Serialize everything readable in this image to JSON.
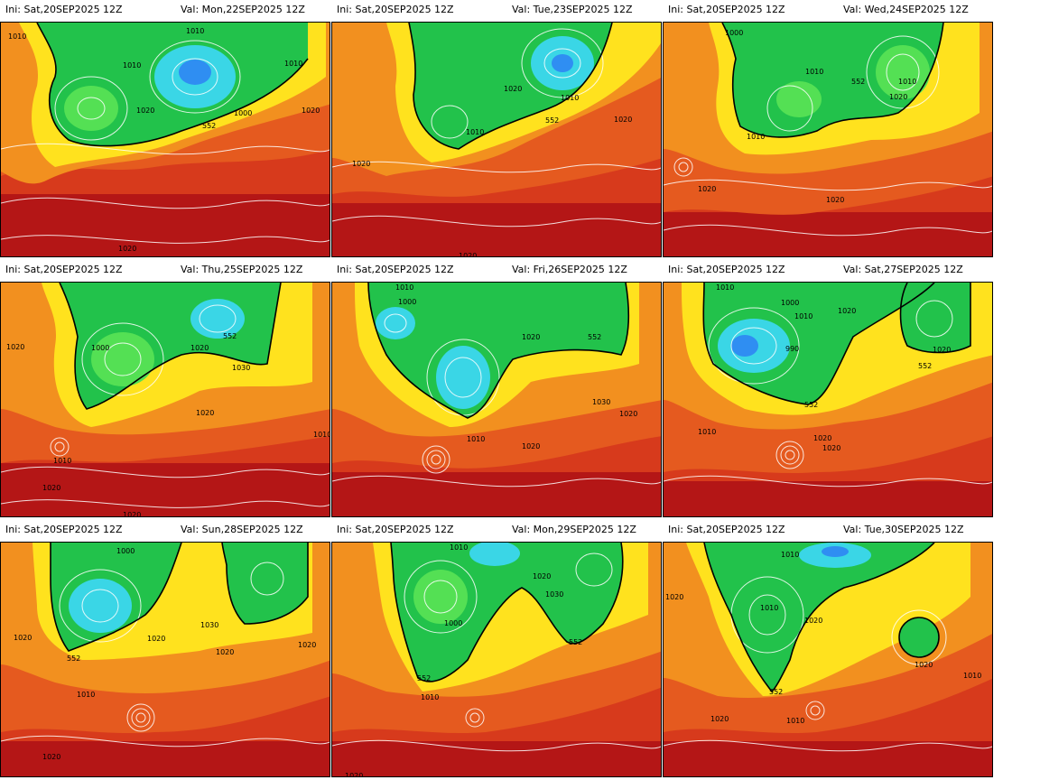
{
  "title": "",
  "colors": {
    "dark_red": "#b41616",
    "red": "#d73a1c",
    "orange_red": "#e55a1f",
    "orange": "#f2901f",
    "yellow": "#ffe21e",
    "green": "#22c24b",
    "light_green": "#54e054",
    "cyan": "#3ad6e6",
    "blue": "#2f8ef2",
    "contour": "#ffffff",
    "border": "#000000"
  },
  "panels": [
    {
      "ini": "Ini: Sat,20SEP2025 12Z",
      "val": "Val: Mon,22SEP2025 12Z",
      "labels": [
        "1010",
        "1010",
        "1010",
        "1020",
        "1000",
        "1010",
        "1020",
        "552",
        "1020"
      ]
    },
    {
      "ini": "Ini: Sat,20SEP2025 12Z",
      "val": "Val: Tue,23SEP2025 12Z",
      "labels": [
        "1020",
        "1010",
        "552",
        "1010",
        "1020",
        "1020",
        "1020"
      ]
    },
    {
      "ini": "Ini: Sat,20SEP2025 12Z",
      "val": "Val: Wed,24SEP2025 12Z",
      "labels": [
        "1000",
        "1010",
        "552",
        "1010",
        "1020",
        "1010",
        "1020",
        "1020"
      ]
    },
    {
      "ini": "Ini: Sat,20SEP2025 12Z",
      "val": "Val: Thu,25SEP2025 12Z",
      "labels": [
        "1020",
        "1000",
        "1020",
        "552",
        "1030",
        "1020",
        "1010",
        "1020",
        "1020",
        "1010"
      ]
    },
    {
      "ini": "Ini: Sat,20SEP2025 12Z",
      "val": "Val: Fri,26SEP2025 12Z",
      "labels": [
        "1010",
        "1000",
        "1020",
        "552",
        "1030",
        "1020",
        "1010",
        "1020"
      ]
    },
    {
      "ini": "Ini: Sat,20SEP2025 12Z",
      "val": "Val: Sat,27SEP2025 12Z",
      "labels": [
        "1010",
        "1000",
        "1010",
        "990",
        "1020",
        "552",
        "1020",
        "552",
        "1010",
        "1020",
        "1020"
      ]
    },
    {
      "ini": "Ini: Sat,20SEP2025 12Z",
      "val": "Val: Sun,28SEP2025 12Z",
      "labels": [
        "1000",
        "1020",
        "552",
        "1020",
        "1030",
        "1020",
        "1010",
        "1020",
        "1020"
      ]
    },
    {
      "ini": "Ini: Sat,20SEP2025 12Z",
      "val": "Val: Mon,29SEP2025 12Z",
      "labels": [
        "1010",
        "1020",
        "1030",
        "1000",
        "552",
        "552",
        "1010",
        "1020"
      ]
    },
    {
      "ini": "Ini: Sat,20SEP2025 12Z",
      "val": "Val: Tue,30SEP2025 12Z",
      "labels": [
        "1010",
        "1020",
        "1010",
        "1020",
        "552",
        "1020",
        "1010",
        "1020",
        "1010"
      ]
    }
  ]
}
